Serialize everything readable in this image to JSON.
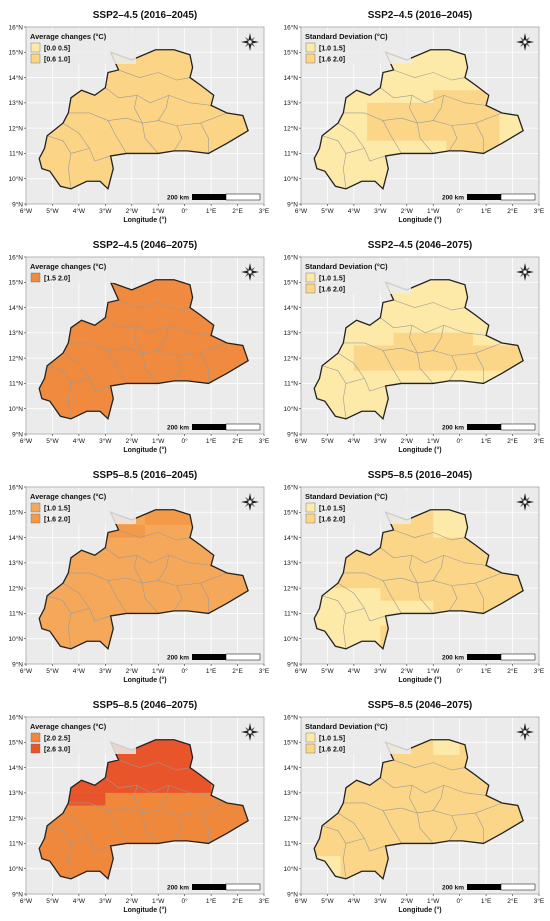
{
  "colors": {
    "panel_bg": "#ebebeb",
    "grid": "#ffffff",
    "border": "#222222",
    "admin_lines": "#9a9a9a",
    "c_00_05": "#fde9a8",
    "c_06_10": "#fbd486",
    "c_15_20_mean": "#f08a3e",
    "c_10_15_mean": "#f6a85a",
    "c_16_20_mean": "#f39a48",
    "c_20_25": "#f0883c",
    "c_26_30": "#e8552b",
    "c_sd_10_15": "#fdeaa8",
    "c_sd_16_20": "#fbd688"
  },
  "panels": [
    {
      "title": "SSP2–4.5 (2016–2045)",
      "legend_title": "Average changes (°C)",
      "legend": [
        {
          "label": "[0.0  0.5]",
          "color": "#fde9a8"
        },
        {
          "label": "[0.6  1.0]",
          "color": "#fbd486"
        }
      ],
      "scale_label": "200 km",
      "xlabel": "Longitude (°)",
      "x_ticks": [
        "6°W",
        "5°W",
        "4°W",
        "3°W",
        "2°W",
        "1°W",
        "0°",
        "1°E",
        "2°E",
        "3°E"
      ],
      "y_ticks": [
        "9°N",
        "10°N",
        "11°N",
        "12°N",
        "13°N",
        "14°N",
        "15°N",
        "16°N"
      ],
      "base_color": "#fbd486",
      "blocks": []
    },
    {
      "title": "SSP2–4.5 (2016–2045)",
      "legend_title": "Standard Deviation (°C)",
      "legend": [
        {
          "label": "[1.0  1.5]",
          "color": "#fdeaa8"
        },
        {
          "label": "[1.6  2.0]",
          "color": "#fbd688"
        }
      ],
      "scale_label": "200 km",
      "xlabel": "Longitude (°)",
      "x_ticks": [
        "6°W",
        "5°W",
        "4°W",
        "3°W",
        "2°W",
        "1°W",
        "0°",
        "1°E",
        "2°E",
        "3°E"
      ],
      "y_ticks": [
        "9°N",
        "10°N",
        "11°N",
        "12°N",
        "13°N",
        "14°N",
        "15°N",
        "16°N"
      ],
      "base_color": "#fdeaa8",
      "blocks": [
        {
          "lon": [
            -3.5,
            1.5
          ],
          "lat": [
            11.5,
            13.0
          ],
          "color": "#fbd688"
        },
        {
          "lon": [
            -1.0,
            1.0
          ],
          "lat": [
            13.0,
            13.5
          ],
          "color": "#fbd688"
        },
        {
          "lon": [
            -0.5,
            1.5
          ],
          "lat": [
            11.0,
            11.5
          ],
          "color": "#fbd688"
        }
      ]
    },
    {
      "title": "SSP2–4.5 (2046–2075)",
      "legend_title": "Average changes (°C)",
      "legend": [
        {
          "label": "[1.5  2.0]",
          "color": "#f08a3e"
        }
      ],
      "scale_label": "200 km",
      "xlabel": "Longitude (°)",
      "x_ticks": [
        "6°W",
        "5°W",
        "4°W",
        "3°W",
        "2°W",
        "1°W",
        "0°",
        "1°E",
        "2°E",
        "3°E"
      ],
      "y_ticks": [
        "9°N",
        "10°N",
        "11°N",
        "12°N",
        "13°N",
        "14°N",
        "15°N",
        "16°N"
      ],
      "base_color": "#f08a3e",
      "blocks": []
    },
    {
      "title": "SSP2–4.5 (2046–2075)",
      "legend_title": "Standard Deviation (°C)",
      "legend": [
        {
          "label": "[1.0  1.5]",
          "color": "#fdeaa8"
        },
        {
          "label": "[1.6  2.0]",
          "color": "#fbd688"
        }
      ],
      "scale_label": "200 km",
      "xlabel": "Longitude (°)",
      "x_ticks": [
        "6°W",
        "5°W",
        "4°W",
        "3°W",
        "2°W",
        "1°W",
        "0°",
        "1°E",
        "2°E",
        "3°E"
      ],
      "y_ticks": [
        "9°N",
        "10°N",
        "11°N",
        "12°N",
        "13°N",
        "14°N",
        "15°N",
        "16°N"
      ],
      "base_color": "#fdeaa8",
      "blocks": [
        {
          "lon": [
            -4.0,
            2.5
          ],
          "lat": [
            11.5,
            12.5
          ],
          "color": "#fbd688"
        },
        {
          "lon": [
            -2.5,
            0.5
          ],
          "lat": [
            12.5,
            13.0
          ],
          "color": "#fbd688"
        }
      ]
    },
    {
      "title": "SSP5–8.5 (2016–2045)",
      "legend_title": "Average changes (°C)",
      "legend": [
        {
          "label": "[1.0  1.5]",
          "color": "#f6a85a"
        },
        {
          "label": "[1.6  2.0]",
          "color": "#f39a48"
        }
      ],
      "scale_label": "200 km",
      "xlabel": "Longitude (°)",
      "x_ticks": [
        "6°W",
        "5°W",
        "4°W",
        "3°W",
        "2°W",
        "1°W",
        "0°",
        "1°E",
        "2°E",
        "3°E"
      ],
      "y_ticks": [
        "9°N",
        "10°N",
        "11°N",
        "12°N",
        "13°N",
        "14°N",
        "15°N",
        "16°N"
      ],
      "base_color": "#f6a85a",
      "blocks": [
        {
          "lon": [
            -1.5,
            0.5
          ],
          "lat": [
            14.5,
            15.2
          ],
          "color": "#f39a48"
        },
        {
          "lon": [
            -3.0,
            -1.5
          ],
          "lat": [
            14.0,
            14.5
          ],
          "color": "#f39a48"
        }
      ]
    },
    {
      "title": "SSP5–8.5 (2016–2045)",
      "legend_title": "Standard Deviation (°C)",
      "legend": [
        {
          "label": "[1.0  1.5]",
          "color": "#fdeaa8"
        },
        {
          "label": "[1.6  2.0]",
          "color": "#fbd688"
        }
      ],
      "scale_label": "200 km",
      "xlabel": "Longitude (°)",
      "x_ticks": [
        "6°W",
        "5°W",
        "4°W",
        "3°W",
        "2°W",
        "1°W",
        "0°",
        "1°E",
        "2°E",
        "3°E"
      ],
      "y_ticks": [
        "9°N",
        "10°N",
        "11°N",
        "12°N",
        "13°N",
        "14°N",
        "15°N",
        "16°N"
      ],
      "base_color": "#fbd688",
      "blocks": [
        {
          "lon": [
            -5.5,
            -3.0
          ],
          "lat": [
            9.5,
            12.0
          ],
          "color": "#fdeaa8"
        },
        {
          "lon": [
            -3.0,
            -1.0
          ],
          "lat": [
            10.5,
            11.5
          ],
          "color": "#fdeaa8"
        },
        {
          "lon": [
            -1.0,
            0.5
          ],
          "lat": [
            14.0,
            15.2
          ],
          "color": "#fdeaa8"
        }
      ]
    },
    {
      "title": "SSP5–8.5 (2046–2075)",
      "legend_title": "Average changes (°C)",
      "legend": [
        {
          "label": "[2.0  2.5]",
          "color": "#f0883c"
        },
        {
          "label": "[2.6  3.0]",
          "color": "#e8552b"
        }
      ],
      "scale_label": "200 km",
      "xlabel": "Longitude (°)",
      "x_ticks": [
        "6°W",
        "5°W",
        "4°W",
        "3°W",
        "2°W",
        "1°W",
        "0°",
        "1°E",
        "2°E",
        "3°E"
      ],
      "y_ticks": [
        "9°N",
        "10°N",
        "11°N",
        "12°N",
        "13°N",
        "14°N",
        "15°N",
        "16°N"
      ],
      "base_color": "#f0883c",
      "blocks": [
        {
          "lon": [
            -4.5,
            1.0
          ],
          "lat": [
            13.0,
            15.2
          ],
          "color": "#e8552b"
        },
        {
          "lon": [
            -4.5,
            -3.0
          ],
          "lat": [
            12.5,
            13.0
          ],
          "color": "#e8552b"
        }
      ]
    },
    {
      "title": "SSP5–8.5 (2046–2075)",
      "legend_title": "Standard Deviation (°C)",
      "legend": [
        {
          "label": "[1.0  1.5]",
          "color": "#fdeaa8"
        },
        {
          "label": "[1.6  2.0]",
          "color": "#fbd688"
        }
      ],
      "scale_label": "200 km",
      "xlabel": "Longitude (°)",
      "x_ticks": [
        "6°W",
        "5°W",
        "4°W",
        "3°W",
        "2°W",
        "1°W",
        "0°",
        "1°E",
        "2°E",
        "3°E"
      ],
      "y_ticks": [
        "9°N",
        "10°N",
        "11°N",
        "12°N",
        "13°N",
        "14°N",
        "15°N",
        "16°N"
      ],
      "base_color": "#fbd688",
      "blocks": [
        {
          "lon": [
            -5.5,
            -4.5
          ],
          "lat": [
            9.5,
            10.5
          ],
          "color": "#fdeaa8"
        },
        {
          "lon": [
            -1.0,
            0.0
          ],
          "lat": [
            14.5,
            15.2
          ],
          "color": "#fdeaa8"
        }
      ]
    }
  ]
}
